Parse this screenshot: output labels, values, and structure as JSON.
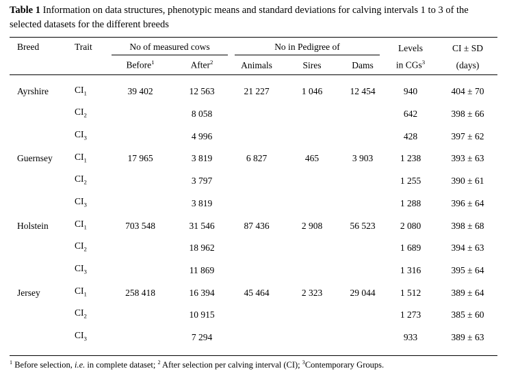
{
  "colors": {
    "text": "#000000",
    "background": "#ffffff",
    "rule": "#000000"
  },
  "title": {
    "label": "Table 1",
    "text": " Information on data structures, phenotypic means and standard deviations for calving intervals 1 to 3 of the selected datasets for the different breeds"
  },
  "table": {
    "groups": {
      "measured_cows": "No of measured cows",
      "pedigree": "No in Pedigree of"
    },
    "columns": {
      "breed": "Breed",
      "trait": "Trait",
      "before": {
        "text": "Before",
        "sup": "1"
      },
      "after": {
        "text": "After",
        "sup": "2"
      },
      "animals": "Animals",
      "sires": "Sires",
      "dams": "Dams",
      "levels": {
        "line1": "Levels",
        "line2": "in CGs",
        "sup": "3"
      },
      "ci": {
        "line1": "CI ± SD",
        "line2": "(days)"
      }
    },
    "rows": [
      {
        "breed": "Ayrshire",
        "trait": {
          "base": "CI",
          "sub": "1"
        },
        "values": [
          "39 402",
          "12 563",
          "21 227",
          "1 046",
          "12 454",
          "940",
          "404 ± 70"
        ]
      },
      {
        "breed": "",
        "trait": {
          "base": "CI",
          "sub": "2"
        },
        "values": [
          "",
          "8 058",
          "",
          "",
          "",
          "642",
          "398 ± 66"
        ]
      },
      {
        "breed": "",
        "trait": {
          "base": "CI",
          "sub": "3"
        },
        "values": [
          "",
          "4 996",
          "",
          "",
          "",
          "428",
          "397 ± 62"
        ]
      },
      {
        "breed": "Guernsey",
        "trait": {
          "base": "CI",
          "sub": "1"
        },
        "values": [
          "17 965",
          "3 819",
          "6 827",
          "465",
          "3 903",
          "1 238",
          "393 ± 63"
        ]
      },
      {
        "breed": "",
        "trait": {
          "base": "CI",
          "sub": "2"
        },
        "values": [
          "",
          "3 797",
          "",
          "",
          "",
          "1 255",
          "390 ± 61"
        ]
      },
      {
        "breed": "",
        "trait": {
          "base": "CI",
          "sub": "3"
        },
        "values": [
          "",
          "3 819",
          "",
          "",
          "",
          "1 288",
          "396 ± 64"
        ]
      },
      {
        "breed": "Holstein",
        "trait": {
          "base": "CI",
          "sub": "1"
        },
        "values": [
          "703 548",
          "31 546",
          "87 436",
          "2 908",
          "56 523",
          "2 080",
          "398 ± 68"
        ]
      },
      {
        "breed": "",
        "trait": {
          "base": "CI",
          "sub": "2"
        },
        "values": [
          "",
          "18 962",
          "",
          "",
          "",
          "1 689",
          "394 ± 63"
        ]
      },
      {
        "breed": "",
        "trait": {
          "base": "CI",
          "sub": "3"
        },
        "values": [
          "",
          "11 869",
          "",
          "",
          "",
          "1 316",
          "395 ± 64"
        ]
      },
      {
        "breed": "Jersey",
        "trait": {
          "base": "CI",
          "sub": "1"
        },
        "values": [
          "258 418",
          "16 394",
          "45 464",
          "2 323",
          "29 044",
          "1 512",
          "389 ± 64"
        ]
      },
      {
        "breed": "",
        "trait": {
          "base": "CI",
          "sub": "2"
        },
        "values": [
          "",
          "10 915",
          "",
          "",
          "",
          "1 273",
          "385 ± 60"
        ]
      },
      {
        "breed": "",
        "trait": {
          "base": "CI",
          "sub": "3"
        },
        "values": [
          "",
          "7 294",
          "",
          "",
          "",
          "933",
          "389 ± 63"
        ]
      }
    ]
  },
  "footnote": {
    "segments": [
      {
        "sup": "1"
      },
      {
        "text": " Before selection, "
      },
      {
        "italic": "i.e."
      },
      {
        "text": " in complete dataset; "
      },
      {
        "sup": "2"
      },
      {
        "text": " After selection per calving interval (CI); "
      },
      {
        "sup": "3"
      },
      {
        "text": "Contemporary Groups."
      }
    ]
  }
}
